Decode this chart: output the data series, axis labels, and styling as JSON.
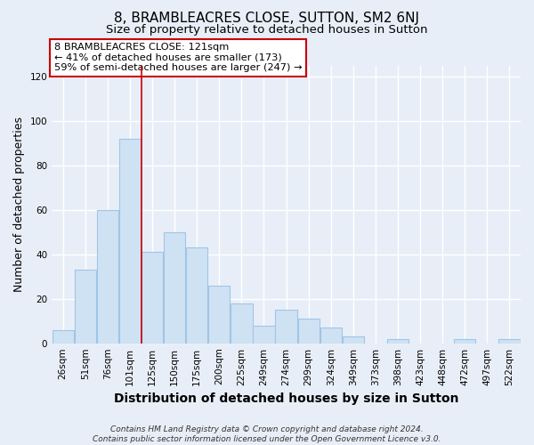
{
  "title": "8, BRAMBLEACRES CLOSE, SUTTON, SM2 6NJ",
  "subtitle": "Size of property relative to detached houses in Sutton",
  "xlabel": "Distribution of detached houses by size in Sutton",
  "ylabel": "Number of detached properties",
  "bar_labels": [
    "26sqm",
    "51sqm",
    "76sqm",
    "101sqm",
    "125sqm",
    "150sqm",
    "175sqm",
    "200sqm",
    "225sqm",
    "249sqm",
    "274sqm",
    "299sqm",
    "324sqm",
    "349sqm",
    "373sqm",
    "398sqm",
    "423sqm",
    "448sqm",
    "472sqm",
    "497sqm",
    "522sqm"
  ],
  "bar_values": [
    6,
    33,
    60,
    92,
    41,
    50,
    43,
    26,
    18,
    8,
    15,
    11,
    7,
    3,
    0,
    2,
    0,
    0,
    2,
    0,
    2
  ],
  "bar_color": "#cfe2f3",
  "bar_edge_color": "#9fc5e8",
  "vline_color": "#cc0000",
  "annotation_text": "8 BRAMBLEACRES CLOSE: 121sqm\n← 41% of detached houses are smaller (173)\n59% of semi-detached houses are larger (247) →",
  "annotation_box_color": "#ffffff",
  "annotation_box_edgecolor": "#cc0000",
  "ylim": [
    0,
    125
  ],
  "yticks": [
    0,
    20,
    40,
    60,
    80,
    100,
    120
  ],
  "footer_text": "Contains HM Land Registry data © Crown copyright and database right 2024.\nContains public sector information licensed under the Open Government Licence v3.0.",
  "background_color": "#e8eef8",
  "plot_background_color": "#e8eef8",
  "grid_color": "#ffffff",
  "title_fontsize": 11,
  "subtitle_fontsize": 9.5,
  "axis_label_fontsize": 9,
  "tick_fontsize": 7.5,
  "footer_fontsize": 6.5
}
